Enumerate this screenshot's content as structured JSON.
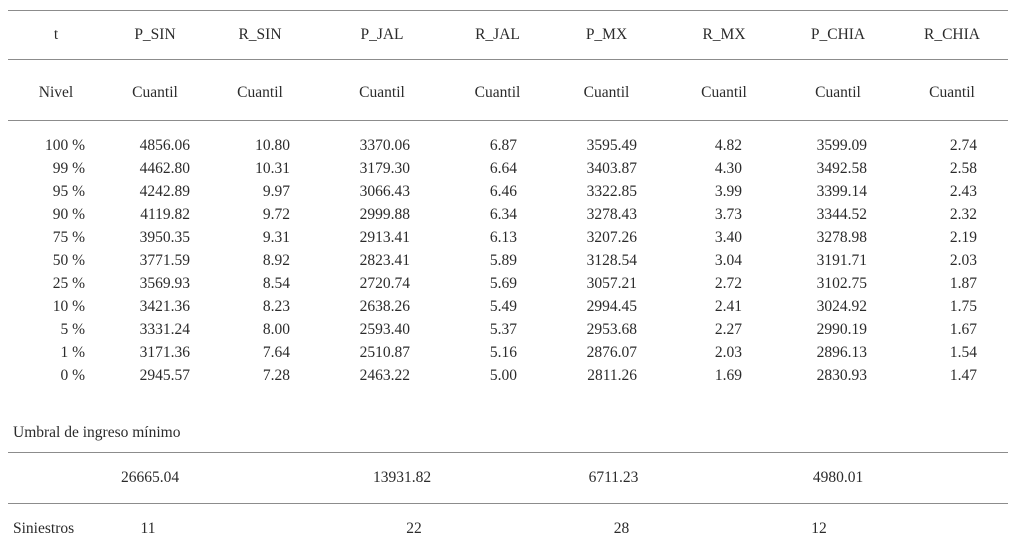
{
  "colors": {
    "background": "#ffffff",
    "text": "#2b2b2b",
    "rule": "#8c8c8c"
  },
  "table": {
    "columns": [
      "t",
      "P_SIN",
      "R_SIN",
      "P_JAL",
      "R_JAL",
      "P_MX",
      "R_MX",
      "P_CHIA",
      "R_CHIA"
    ],
    "subheaders": [
      "Nivel",
      "Cuantil",
      "Cuantil",
      "Cuantil",
      "Cuantil",
      "Cuantil",
      "Cuantil",
      "Cuantil",
      "Cuantil"
    ],
    "rows": [
      {
        "level": "100 %",
        "values": [
          "4856.06",
          "10.80",
          "3370.06",
          "6.87",
          "3595.49",
          "4.82",
          "3599.09",
          "2.74"
        ]
      },
      {
        "level": "99 %",
        "values": [
          "4462.80",
          "10.31",
          "3179.30",
          "6.64",
          "3403.87",
          "4.30",
          "3492.58",
          "2.58"
        ]
      },
      {
        "level": "95 %",
        "values": [
          "4242.89",
          "9.97",
          "3066.43",
          "6.46",
          "3322.85",
          "3.99",
          "3399.14",
          "2.43"
        ]
      },
      {
        "level": "90 %",
        "values": [
          "4119.82",
          "9.72",
          "2999.88",
          "6.34",
          "3278.43",
          "3.73",
          "3344.52",
          "2.32"
        ]
      },
      {
        "level": "75 %",
        "values": [
          "3950.35",
          "9.31",
          "2913.41",
          "6.13",
          "3207.26",
          "3.40",
          "3278.98",
          "2.19"
        ]
      },
      {
        "level": "50 %",
        "values": [
          "3771.59",
          "8.92",
          "2823.41",
          "5.89",
          "3128.54",
          "3.04",
          "3191.71",
          "2.03"
        ]
      },
      {
        "level": "25 %",
        "values": [
          "3569.93",
          "8.54",
          "2720.74",
          "5.69",
          "3057.21",
          "2.72",
          "3102.75",
          "1.87"
        ]
      },
      {
        "level": "10 %",
        "values": [
          "3421.36",
          "8.23",
          "2638.26",
          "5.49",
          "2994.45",
          "2.41",
          "3024.92",
          "1.75"
        ]
      },
      {
        "level": "5 %",
        "values": [
          "3331.24",
          "8.00",
          "2593.40",
          "5.37",
          "2953.68",
          "2.27",
          "2990.19",
          "1.67"
        ]
      },
      {
        "level": "1 %",
        "values": [
          "3171.36",
          "7.64",
          "2510.87",
          "5.16",
          "2876.07",
          "2.03",
          "2896.13",
          "1.54"
        ]
      },
      {
        "level": "0 %",
        "values": [
          "2945.57",
          "7.28",
          "2463.22",
          "5.00",
          "2811.26",
          "1.69",
          "2830.93",
          "1.47"
        ]
      }
    ],
    "umbral_label": "Umbral de ingreso mínimo",
    "umbral_values": [
      "26665.04",
      "13931.82",
      "6711.23",
      "4980.01"
    ],
    "siniestros_label": "Siniestros",
    "siniestros_values": [
      "11",
      "22",
      "28",
      "12"
    ]
  }
}
